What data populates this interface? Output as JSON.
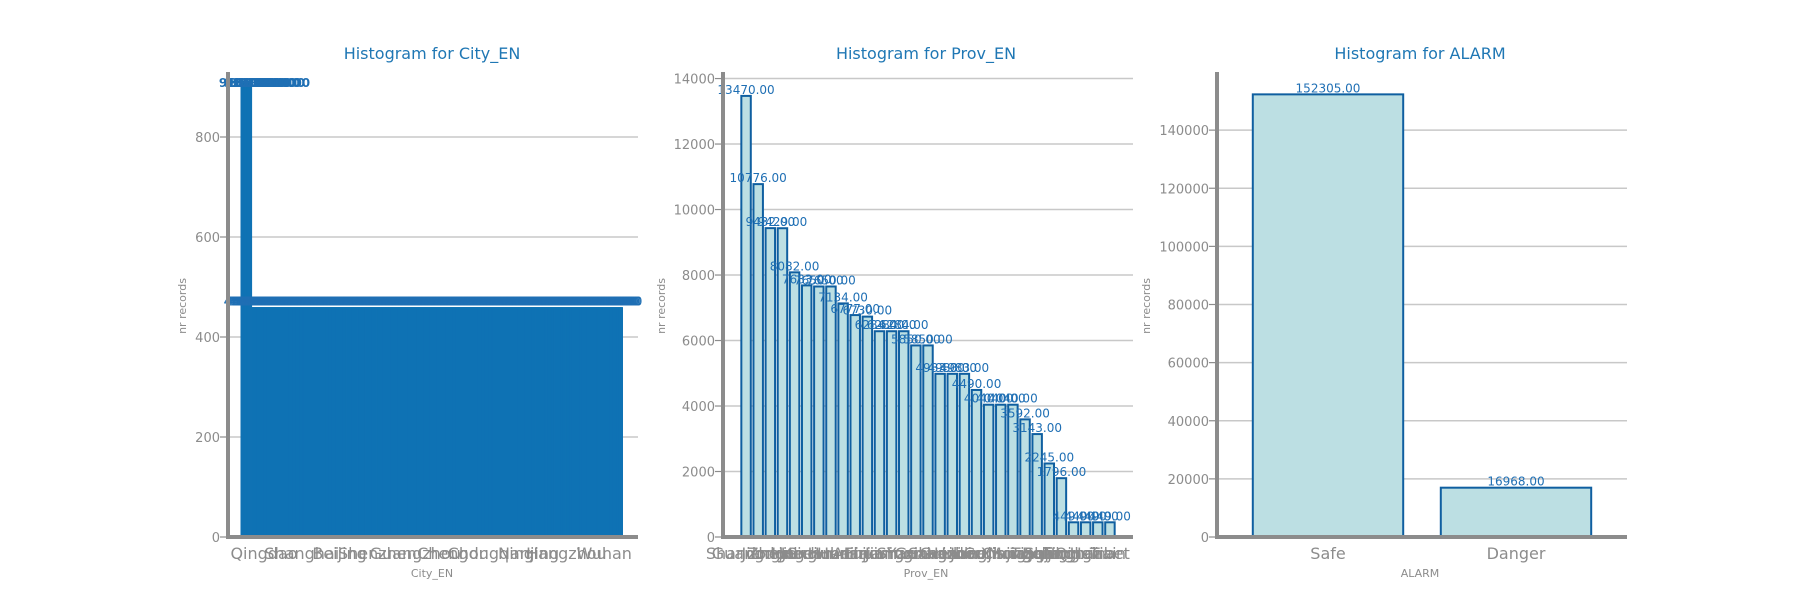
{
  "chart_data": [
    {
      "type": "bar",
      "title": "Histogram for City_EN",
      "xlabel": "City_EN",
      "ylabel": "nr records",
      "ylim": [
        0,
        930
      ],
      "yticks": [
        0,
        200,
        400,
        600,
        800
      ],
      "grid": true,
      "legend": "none",
      "colors": {
        "fill": "#0f72b4",
        "edge": "#0f72b4"
      },
      "categories": [
        "Qingdao",
        "Shanghai",
        "Beijing",
        "Shenzhen",
        "Guangzhou",
        "Chengdu",
        "Chongqing",
        "Nanjing",
        "Hangzhou",
        "Wuhan"
      ],
      "values": [
        910,
        910,
        910,
        910,
        910,
        910,
        910,
        910,
        910,
        910
      ],
      "bulk_count": 320,
      "bulk_value": 459,
      "label_format": "fixed2"
    },
    {
      "type": "bar",
      "title": "Histogram for Prov_EN",
      "xlabel": "Prov_EN",
      "ylabel": "nr records",
      "ylim": [
        0,
        14200
      ],
      "yticks": [
        0,
        2000,
        4000,
        6000,
        8000,
        10000,
        12000,
        14000
      ],
      "grid": true,
      "legend": "none",
      "colors": {
        "fill": "#bcdfe3",
        "edge": "#0f5fa0"
      },
      "categories": [
        "Shandong",
        "Guangdong",
        "Jiangsu",
        "Zhejiang",
        "Hebei",
        "Henan",
        "Sichuan",
        "Hubei",
        "Hunan",
        "Anhui",
        "Fujian",
        "Liaoning",
        "Jiangxi",
        "Shanxi",
        "Yunnan",
        "Guangxi",
        "Shaanxi",
        "Guizhou",
        "Jilin",
        "Heilongjiang",
        "Gansu",
        "Inner Mongolia",
        "Xinjiang",
        "Chongqing",
        "Tianjin",
        "Beijing",
        "Shanghai",
        "Ningxia",
        "Qinghai",
        "Hainan",
        "Tibet"
      ],
      "values": [
        13470,
        10776,
        9432,
        9429,
        8082,
        7683,
        7650,
        7650,
        7134,
        6777,
        6730,
        6284,
        6284,
        6284,
        5850,
        5850,
        4983,
        4983,
        4983,
        4490,
        4040,
        4040,
        4040,
        3592,
        3143,
        2245,
        1796,
        449,
        449,
        449,
        449
      ],
      "labels": [
        "13470.00",
        "10776.00",
        "9432.00",
        "9429.00",
        "8082.00",
        "7683.00",
        "7650.00",
        "7650.00",
        "7134.00",
        "6777.00",
        "6730.00",
        "6284.00",
        "6284.00",
        "6284.00",
        "5850.00",
        "5850.00",
        "4983.00",
        "4983.00",
        "4983.00",
        "4490.00",
        "4040.00",
        "4040.00",
        "4040.00",
        "3592.00",
        "3143.00",
        "2245.00",
        "1796.00",
        "449.00",
        "449.00",
        "449.00",
        "449.00"
      ],
      "label_format": "fixed2"
    },
    {
      "type": "bar",
      "title": "Histogram for ALARM",
      "xlabel": "ALARM",
      "ylabel": "nr records",
      "ylim": [
        0,
        160000
      ],
      "yticks": [
        0,
        20000,
        40000,
        60000,
        80000,
        100000,
        120000,
        140000
      ],
      "grid": true,
      "legend": "none",
      "colors": {
        "fill": "#bcdfe3",
        "edge": "#0f5fa0"
      },
      "categories": [
        "Safe",
        "Danger"
      ],
      "values": [
        152305,
        16968
      ],
      "labels": [
        "152305.00",
        "16968.00"
      ],
      "label_format": "fixed2"
    }
  ]
}
